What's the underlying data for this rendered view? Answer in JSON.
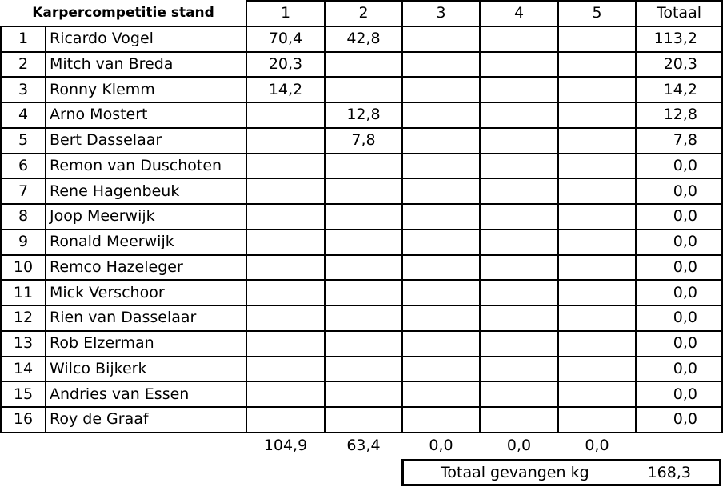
{
  "title": "Karpercompetitie stand",
  "rounds": [
    "1",
    "2",
    "3",
    "4",
    "5"
  ],
  "total_header": "Totaal",
  "rows": [
    {
      "rank": "1",
      "name": "Ricardo Vogel",
      "scores": [
        "70,4",
        "42,8",
        "",
        "",
        ""
      ],
      "total": "113,2"
    },
    {
      "rank": "2",
      "name": "Mitch van Breda",
      "scores": [
        "20,3",
        "",
        "",
        "",
        ""
      ],
      "total": "20,3"
    },
    {
      "rank": "3",
      "name": "Ronny Klemm",
      "scores": [
        "14,2",
        "",
        "",
        "",
        ""
      ],
      "total": "14,2"
    },
    {
      "rank": "4",
      "name": "Arno Mostert",
      "scores": [
        "",
        "12,8",
        "",
        "",
        ""
      ],
      "total": "12,8"
    },
    {
      "rank": "5",
      "name": "Bert Dasselaar",
      "scores": [
        "",
        "7,8",
        "",
        "",
        ""
      ],
      "total": "7,8"
    },
    {
      "rank": "6",
      "name": "Remon van Duschoten",
      "scores": [
        "",
        "",
        "",
        "",
        ""
      ],
      "total": "0,0"
    },
    {
      "rank": "7",
      "name": "Rene Hagenbeuk",
      "scores": [
        "",
        "",
        "",
        "",
        ""
      ],
      "total": "0,0"
    },
    {
      "rank": "8",
      "name": "Joop Meerwijk",
      "scores": [
        "",
        "",
        "",
        "",
        ""
      ],
      "total": "0,0"
    },
    {
      "rank": "9",
      "name": "Ronald Meerwijk",
      "scores": [
        "",
        "",
        "",
        "",
        ""
      ],
      "total": "0,0"
    },
    {
      "rank": "10",
      "name": "Remco Hazeleger",
      "scores": [
        "",
        "",
        "",
        "",
        ""
      ],
      "total": "0,0"
    },
    {
      "rank": "11",
      "name": "Mick Verschoor",
      "scores": [
        "",
        "",
        "",
        "",
        ""
      ],
      "total": "0,0"
    },
    {
      "rank": "12",
      "name": "Rien van Dasselaar",
      "scores": [
        "",
        "",
        "",
        "",
        ""
      ],
      "total": "0,0"
    },
    {
      "rank": "13",
      "name": "Rob Elzerman",
      "scores": [
        "",
        "",
        "",
        "",
        ""
      ],
      "total": "0,0"
    },
    {
      "rank": "14",
      "name": "Wilco Bijkerk",
      "scores": [
        "",
        "",
        "",
        "",
        ""
      ],
      "total": "0,0"
    },
    {
      "rank": "15",
      "name": "Andries van Essen",
      "scores": [
        "",
        "",
        "",
        "",
        ""
      ],
      "total": "0,0"
    },
    {
      "rank": "16",
      "name": "Roy de Graaf",
      "scores": [
        "",
        "",
        "",
        "",
        ""
      ],
      "total": "0,0"
    }
  ],
  "round_totals": [
    "104,9",
    "63,4",
    "0,0",
    "0,0",
    "0,0"
  ],
  "grand_total": {
    "label": "Totaal gevangen kg",
    "value": "168,3"
  }
}
